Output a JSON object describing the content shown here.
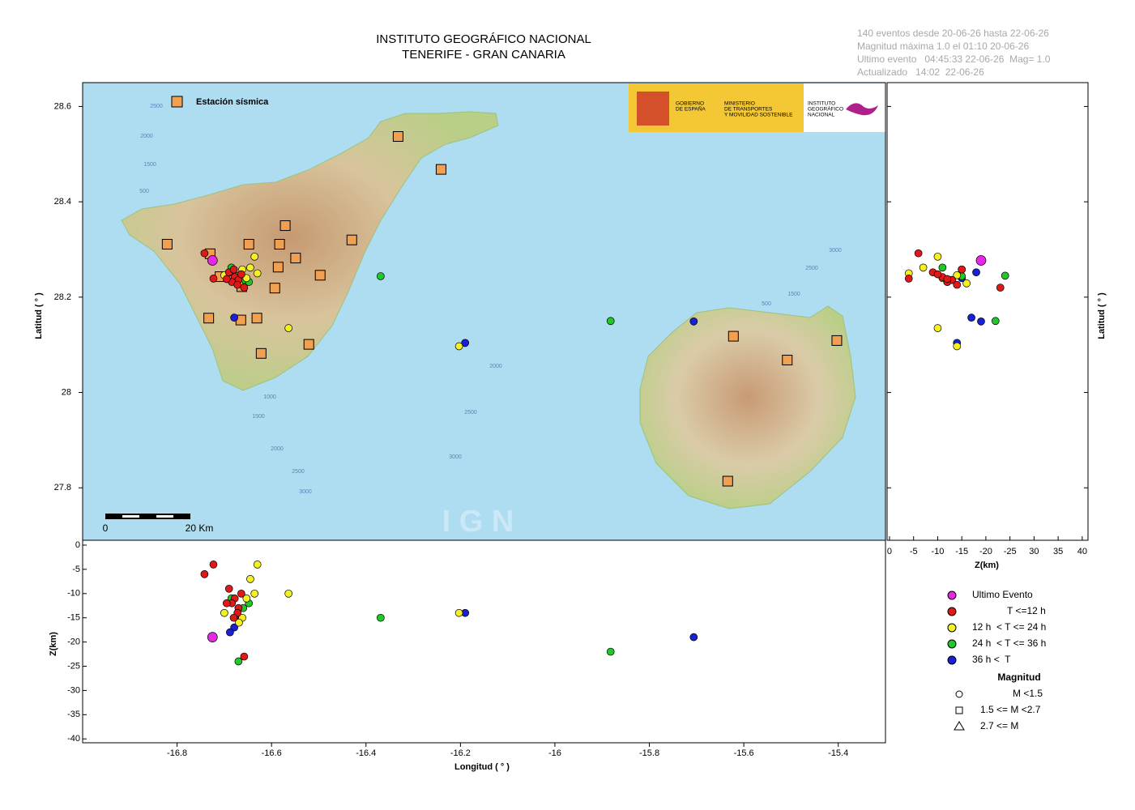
{
  "header": {
    "title": "INSTITUTO GEOGRÁFICO NACIONAL",
    "subtitle": "TENERIFE - GRAN CANARIA"
  },
  "info": [
    "140 eventos desde 20-06-26 hasta 22-06-26",
    "Magnitud máxima 1.0 el 01:10 20-06-26",
    "Ultimo evento   04:45:33 22-06-26  Mag= 1.0",
    "Actualizado   14:02  22-06-26"
  ],
  "map": {
    "ylabel": "Latitud ( ° )",
    "xlim": [
      -17.0,
      -15.3
    ],
    "ylim": [
      27.69,
      28.65
    ],
    "yticks": [
      27.8,
      28,
      28.2,
      28.4,
      28.6
    ],
    "station_legend": "Estación sísmica",
    "scale_labels": [
      "0",
      "20 Km"
    ],
    "watermark": "I G N",
    "contour_labels": [
      "2500",
      "2000",
      "1500",
      "500",
      "1000",
      "1500",
      "2000",
      "2500",
      "3000",
      "2000",
      "2500",
      "3000",
      "3000",
      "2500",
      "1500",
      "500"
    ],
    "logos": {
      "gobierno": [
        "GOBIERNO",
        "DE ESPAÑA"
      ],
      "ministerio": [
        "MINISTERIO",
        "DE TRANSPORTES",
        "Y MOVILIDAD SOSTENIBLE"
      ],
      "ign": [
        "INSTITUTO",
        "GEOGRÁFICO",
        "NACIONAL"
      ]
    }
  },
  "stations": {
    "lon": [
      -16.821,
      -16.73,
      -16.709,
      -16.648,
      -16.583,
      -16.571,
      -16.549,
      -16.586,
      -16.593,
      -16.663,
      -16.497,
      -16.43,
      -16.332,
      -16.241,
      -16.733,
      -16.665,
      -16.631,
      -16.622,
      -16.521,
      -15.622,
      -15.508,
      -15.403,
      -15.634
    ],
    "lat": [
      28.311,
      28.291,
      28.243,
      28.311,
      28.311,
      28.35,
      28.282,
      28.263,
      28.219,
      28.222,
      28.246,
      28.32,
      28.537,
      28.468,
      28.156,
      28.152,
      28.156,
      28.082,
      28.101,
      28.118,
      28.068,
      28.109,
      27.814
    ]
  },
  "events": {
    "series": [
      {
        "name": "Ultimo Evento",
        "color": "#e628e6",
        "lon": [
          -16.725
        ],
        "lat": [
          28.277
        ],
        "depth": [
          -19
        ]
      },
      {
        "name": "T <=12 h",
        "color": "#e01818",
        "lon": [
          -16.69,
          -16.678,
          -16.67,
          -16.684,
          -16.664,
          -16.672,
          -16.695,
          -16.68,
          -16.723,
          -16.742,
          -16.658
        ],
        "lat": [
          28.252,
          28.242,
          28.236,
          28.232,
          28.248,
          28.226,
          28.238,
          28.258,
          28.239,
          28.292,
          28.22
        ],
        "depth": [
          -9,
          -11,
          -13,
          -12,
          -10,
          -14,
          -12,
          -15,
          -4,
          -6,
          -23
        ]
      },
      {
        "name": "12 h  < T <= 24 h",
        "color": "#f5f020",
        "lon": [
          -16.636,
          -16.564,
          -16.203,
          -16.662,
          -16.669,
          -16.653,
          -16.63,
          -16.7,
          -16.645
        ],
        "lat": [
          28.285,
          28.135,
          28.097,
          28.258,
          28.229,
          28.24,
          28.25,
          28.246,
          28.262
        ],
        "depth": [
          -10,
          -10,
          -14,
          -15,
          -16,
          -11,
          -4,
          -14,
          -7
        ]
      },
      {
        "name": "24 h  < T <= 36 h",
        "color": "#20c828",
        "lon": [
          -16.648,
          -16.369,
          -15.882,
          -16.685,
          -16.66,
          -16.67
        ],
        "lat": [
          28.232,
          28.244,
          28.15,
          28.262,
          28.236,
          28.245
        ],
        "depth": [
          -12,
          -15,
          -22,
          -11,
          -13,
          -24
        ]
      },
      {
        "name": "36 h <  T",
        "color": "#1820d8",
        "lon": [
          -16.679,
          -16.19,
          -15.706,
          -16.672,
          -16.688
        ],
        "lat": [
          28.157,
          28.104,
          28.149,
          28.24,
          28.252
        ],
        "depth": [
          -17,
          -14,
          -19,
          -15,
          -18
        ]
      }
    ]
  },
  "lon_depth": {
    "xlabel": "Longitud ( ° )",
    "ylabel": "Z(km)",
    "xticks": [
      -16.8,
      -16.6,
      -16.4,
      -16.2,
      -16,
      -15.8,
      -15.6,
      -15.4
    ],
    "ylim": [
      -40.8,
      1
    ],
    "yticks": [
      0,
      -5,
      -10,
      -15,
      -20,
      -25,
      -30,
      -35,
      -40
    ]
  },
  "lat_depth": {
    "xlabel": "Z(km)",
    "ylabel": "Latitud ( ° )",
    "xlim": [
      0.5,
      -41.2
    ],
    "xticks": [
      0,
      -5,
      -10,
      -15,
      -20,
      -25,
      {
        "value": -30,
        "label": "30"
      },
      {
        "value": -35,
        "label": "35"
      },
      {
        "value": -40,
        "label": "40"
      }
    ]
  },
  "legend": {
    "magnitude_title": "Magnitud",
    "magnitude": [
      "M <1.5",
      "1.5 <= M <2.7",
      "2.7 <= M"
    ]
  }
}
